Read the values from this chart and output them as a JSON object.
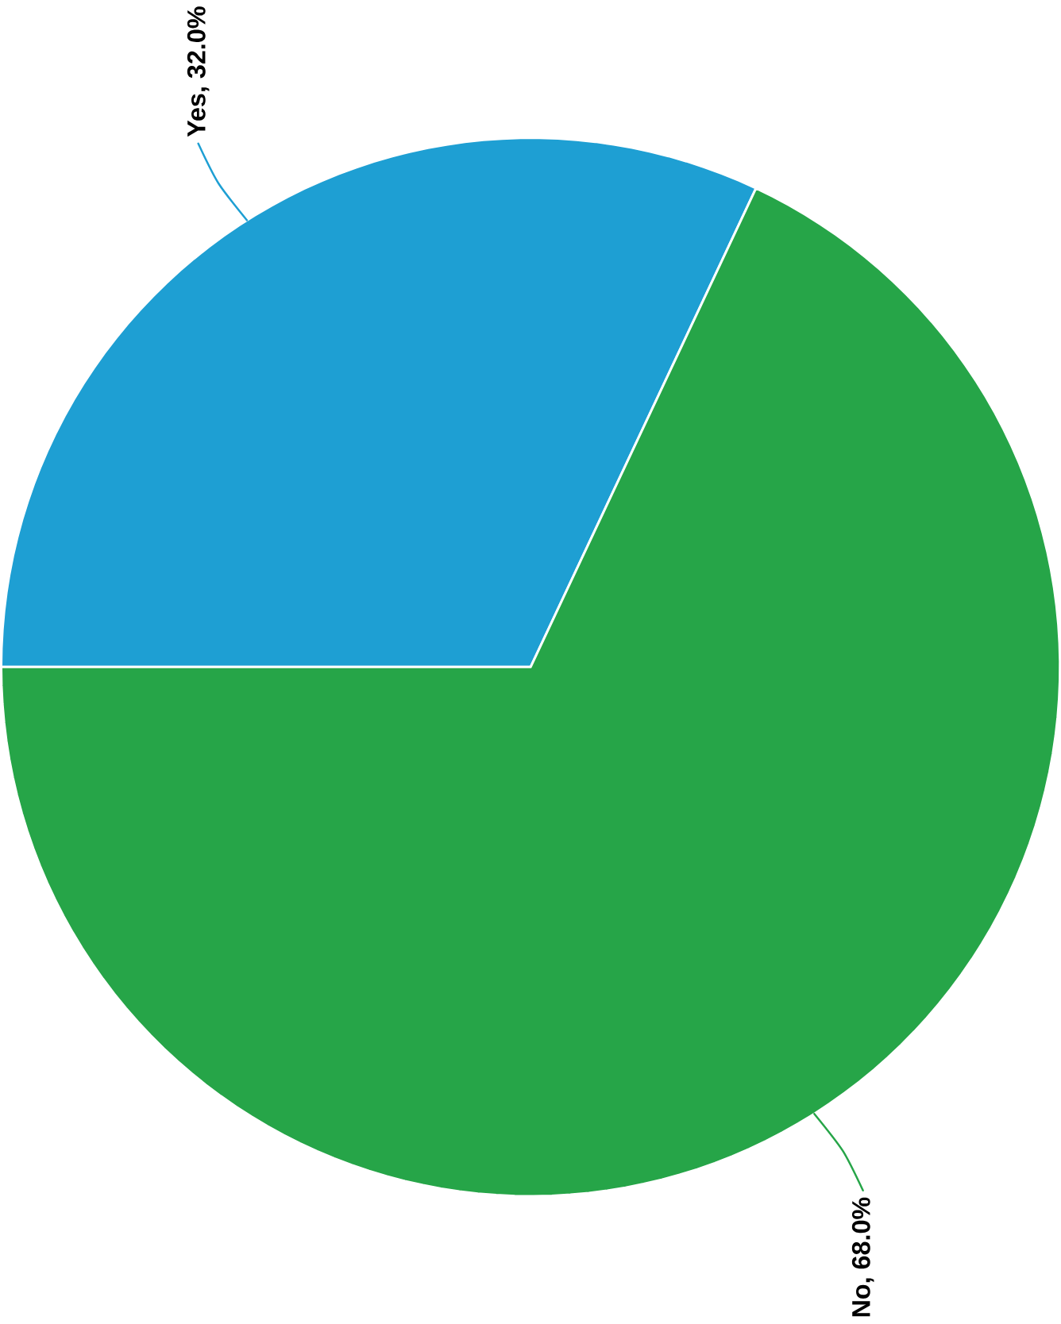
{
  "chart_data": {
    "type": "pie",
    "categories": [
      "Yes",
      "No"
    ],
    "values": [
      32.0,
      68.0
    ],
    "colors": [
      "#1e9fd3",
      "#26a548"
    ],
    "value_labels": [
      ", 32.0%",
      ", 68.0%"
    ]
  }
}
